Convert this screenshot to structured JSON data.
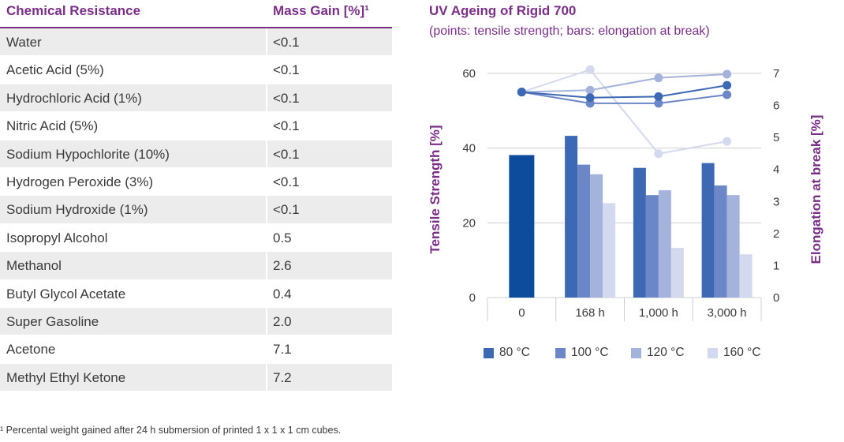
{
  "table": {
    "header": {
      "col1": "Chemical Resistance",
      "col2": "Mass Gain [%]¹"
    },
    "rows": [
      {
        "name": "Water",
        "value": "<0.1"
      },
      {
        "name": "Acetic Acid (5%)",
        "value": "<0.1"
      },
      {
        "name": "Hydrochloric Acid (1%)",
        "value": "<0.1"
      },
      {
        "name": "Nitric Acid (5%)",
        "value": "<0.1"
      },
      {
        "name": "Sodium Hypochlorite (10%)",
        "value": "<0.1"
      },
      {
        "name": "Hydrogen Peroxide (3%)",
        "value": "<0.1"
      },
      {
        "name": "Sodium Hydroxide (1%)",
        "value": "<0.1"
      },
      {
        "name": "Isopropyl Alcohol",
        "value": "0.5"
      },
      {
        "name": "Methanol",
        "value": "2.6"
      },
      {
        "name": "Butyl Glycol Acetate",
        "value": "0.4"
      },
      {
        "name": "Super Gasoline",
        "value": "2.0"
      },
      {
        "name": "Acetone",
        "value": "7.1"
      },
      {
        "name": "Methyl Ethyl Ketone",
        "value": "7.2"
      }
    ],
    "footnote": "¹ Percental weight gained after 24 h submersion of printed 1 x 1 x 1 cm cubes."
  },
  "chart_data": {
    "type": "bar",
    "title": "UV Ageing of Rigid 700",
    "subtitle": "(points: tensile strength; bars: elongation at break)",
    "categories": [
      "0",
      "168 h",
      "1,000 h",
      "3,000 h"
    ],
    "ylabel_left": "Tensile Strength  [%]",
    "ylabel_right": "Elongation at break [%]",
    "ylim_left": [
      0,
      60
    ],
    "yticks_left": [
      0,
      20,
      40,
      60
    ],
    "ylim_right": [
      0,
      7
    ],
    "yticks_right": [
      0,
      1,
      2,
      3,
      4,
      5,
      6,
      7
    ],
    "grid": true,
    "legend_position": "bottom",
    "baseline": {
      "bar_value": 4.45,
      "point_value": 55
    },
    "series": [
      {
        "name": "80 °C",
        "color": "#3c68b4",
        "bar_values": [
          5.05,
          4.05,
          4.2
        ],
        "point_values": [
          53.5,
          53.8,
          56.8
        ]
      },
      {
        "name": "100 °C",
        "color": "#6b87c7",
        "bar_values": [
          4.15,
          3.2,
          3.5
        ],
        "point_values": [
          52.0,
          52.0,
          54.3
        ]
      },
      {
        "name": "120 °C",
        "color": "#a3b3dc",
        "bar_values": [
          3.85,
          3.35,
          3.2
        ],
        "point_values": [
          55.5,
          58.8,
          59.8
        ]
      },
      {
        "name": "160 °C",
        "color": "#d3d9ee",
        "bar_values": [
          2.95,
          1.55,
          1.35
        ],
        "point_values": [
          61.0,
          38.5,
          41.8
        ]
      }
    ],
    "baseline_color": "#0d4b9d"
  }
}
